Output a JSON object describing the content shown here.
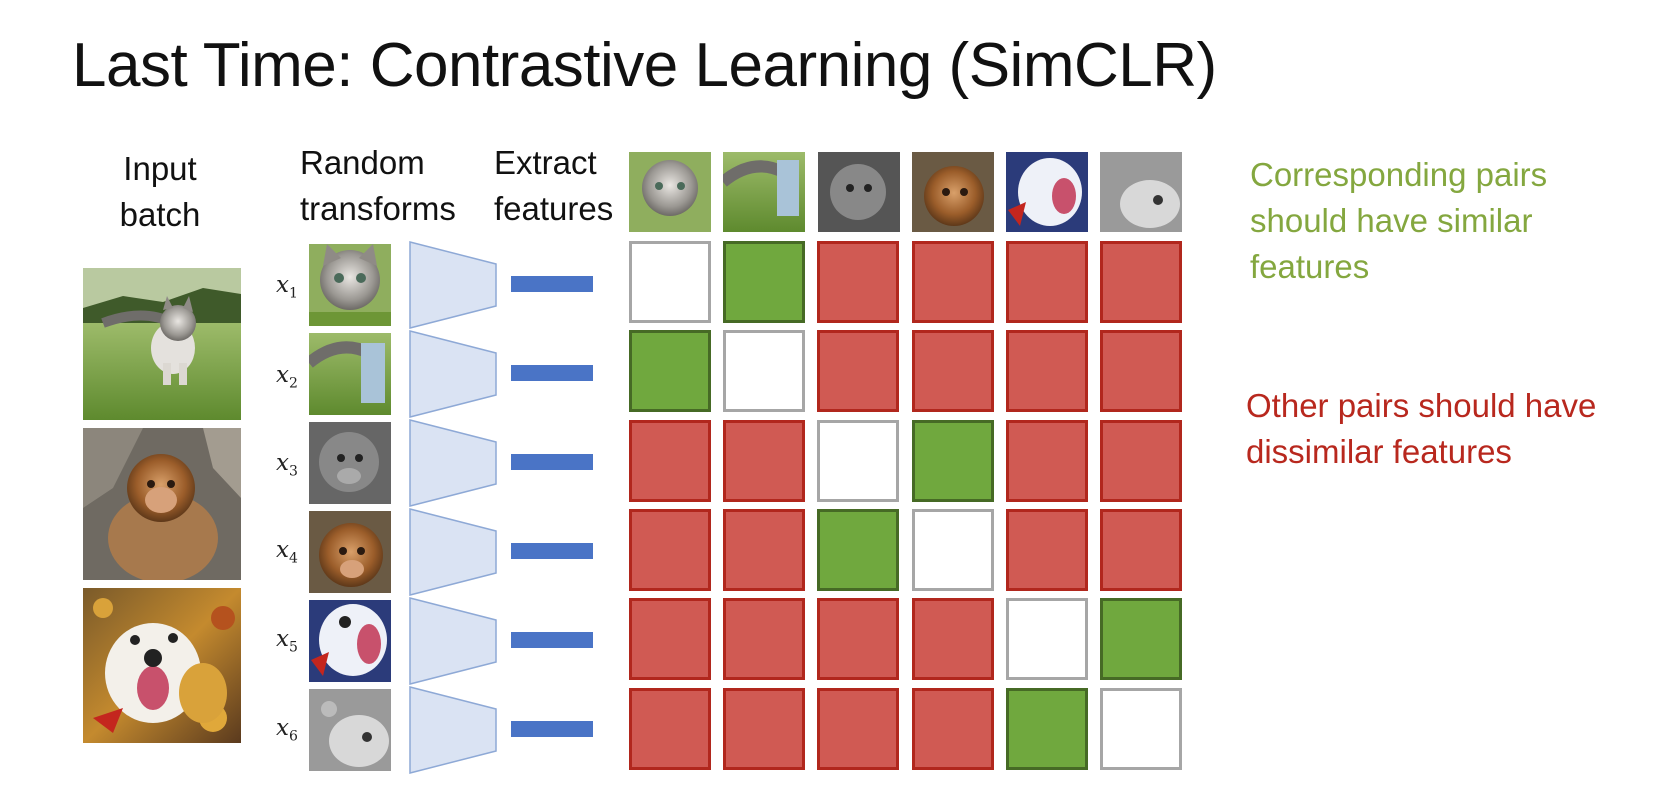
{
  "title": "Last Time: Contrastive Learning (SimCLR)",
  "headers": {
    "input_line1": "Input",
    "input_line2": "batch",
    "random_line1": "Random",
    "random_line2": "transforms",
    "extract_line1": "Extract",
    "extract_line2": "features"
  },
  "samples": [
    {
      "var": "x",
      "sub": "1"
    },
    {
      "var": "x",
      "sub": "2"
    },
    {
      "var": "x",
      "sub": "3"
    },
    {
      "var": "x",
      "sub": "4"
    },
    {
      "var": "x",
      "sub": "5"
    },
    {
      "var": "x",
      "sub": "6"
    }
  ],
  "matrix": [
    [
      "self",
      "pos",
      "neg",
      "neg",
      "neg",
      "neg"
    ],
    [
      "pos",
      "self",
      "neg",
      "neg",
      "neg",
      "neg"
    ],
    [
      "neg",
      "neg",
      "self",
      "pos",
      "neg",
      "neg"
    ],
    [
      "neg",
      "neg",
      "pos",
      "self",
      "neg",
      "neg"
    ],
    [
      "neg",
      "neg",
      "neg",
      "neg",
      "self",
      "pos"
    ],
    [
      "neg",
      "neg",
      "neg",
      "neg",
      "pos",
      "self"
    ]
  ],
  "notes": {
    "positive": {
      "line1": "Corresponding pairs",
      "line2": "should have similar",
      "line3": "features",
      "color": "#84a73f"
    },
    "negative": {
      "line1": "Other pairs should have",
      "line2": "dissimilar features",
      "color": "#b8281e"
    }
  },
  "colors": {
    "positive_cell": "#70a83e",
    "negative_cell": "#d05a53",
    "self_cell": "#ffffff",
    "feature_bar": "#4a74c6",
    "encoder": "#dae3f3"
  }
}
